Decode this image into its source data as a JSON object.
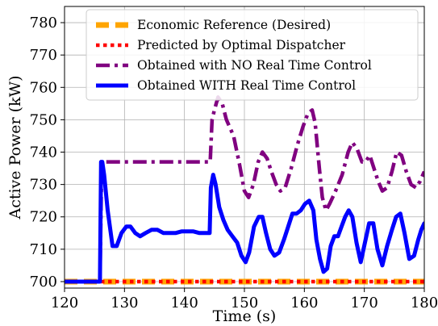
{
  "chart_data": {
    "type": "line",
    "xlabel": "Time (s)",
    "ylabel": "Active Power (kW)",
    "xlim": [
      120,
      180
    ],
    "ylim": [
      698,
      785
    ],
    "xticks": [
      120,
      130,
      140,
      150,
      160,
      170,
      180
    ],
    "yticks": [
      700,
      710,
      720,
      730,
      740,
      750,
      760,
      770,
      780
    ],
    "grid": true,
    "legend_position": "top-right",
    "series": [
      {
        "name": "Economic Reference (Desired)",
        "color": "#FFA500",
        "style": "dashed",
        "x": [
          120,
          180
        ],
        "y": [
          700,
          700
        ]
      },
      {
        "name": "Predicted by Optimal Dispatcher",
        "color": "#FF0000",
        "style": "dotted",
        "x": [
          120,
          180
        ],
        "y": [
          700,
          700
        ]
      },
      {
        "name": "Obtained with NO Real Time Control",
        "color": "#800080",
        "style": "dashdot",
        "x": [
          120,
          125.9,
          126.2,
          126.5,
          130,
          135,
          140,
          144.3,
          144.6,
          145,
          145.6,
          146.3,
          147,
          148.2,
          149.2,
          150,
          150.7,
          151.5,
          152.3,
          153,
          153.8,
          154.5,
          155.3,
          156,
          156.8,
          157.8,
          158.8,
          159.8,
          160.6,
          161.3,
          161.8,
          162.5,
          163,
          163.6,
          164.2,
          165.2,
          166.3,
          167.3,
          168,
          168.8,
          169.6,
          170.2,
          170.9,
          171.6,
          172.3,
          173,
          173.8,
          174.6,
          175.4,
          176.2,
          177,
          177.8,
          178.6,
          179.3,
          180
        ],
        "y": [
          700,
          700,
          737,
          737,
          737,
          737,
          737,
          737,
          750,
          753,
          757,
          755,
          750,
          745,
          736,
          728,
          726,
          730,
          737,
          740,
          738,
          734,
          730,
          728,
          729,
          735,
          742,
          748,
          752,
          753,
          749,
          735,
          726,
          722,
          724,
          728,
          733,
          740,
          743,
          741,
          737,
          737,
          739,
          735,
          731,
          728,
          729,
          734,
          740,
          739,
          734,
          730,
          729,
          731,
          734
        ]
      },
      {
        "name": "Obtained WITH Real Time Control",
        "color": "#0000FF",
        "style": "solid",
        "x": [
          120,
          125.9,
          126.1,
          126.3,
          126.6,
          127.2,
          128,
          128.7,
          129.5,
          130.3,
          131,
          131.8,
          132.6,
          133.5,
          134.5,
          135.5,
          136.5,
          137.5,
          138.5,
          139.5,
          140.5,
          141.5,
          142.5,
          143.5,
          144.2,
          144.4,
          144.8,
          145.2,
          145.8,
          146.5,
          147.2,
          148,
          148.8,
          149.5,
          150.2,
          150.8,
          151.6,
          152.4,
          153,
          153.6,
          154.3,
          155,
          155.8,
          156.6,
          157.3,
          158,
          158.7,
          159.4,
          160.1,
          160.8,
          161.5,
          162,
          162.6,
          163.2,
          163.8,
          164.4,
          165,
          165.6,
          166.2,
          166.8,
          167.4,
          168,
          168.7,
          169.4,
          170.1,
          170.8,
          171.5,
          172.2,
          173,
          173.8,
          174.6,
          175.3,
          176,
          176.7,
          177.5,
          178.3,
          179,
          179.5,
          180
        ],
        "y": [
          700,
          700,
          737,
          737,
          733,
          722,
          711,
          711,
          715,
          717,
          717,
          715,
          714,
          715,
          716,
          716,
          715,
          715,
          715,
          715.5,
          715.5,
          715.5,
          715,
          715,
          715,
          729,
          733,
          730,
          723,
          719,
          716,
          714,
          712,
          708,
          706,
          709,
          717,
          720,
          720,
          715,
          710,
          708,
          709,
          713,
          717,
          721,
          721,
          722,
          724,
          725,
          722,
          713,
          707,
          703,
          704,
          711,
          714,
          714,
          717,
          720,
          722,
          720,
          712,
          706,
          712,
          718,
          718,
          710,
          705,
          711,
          716,
          720,
          721,
          715,
          707,
          708,
          713,
          716,
          718
        ]
      }
    ]
  }
}
